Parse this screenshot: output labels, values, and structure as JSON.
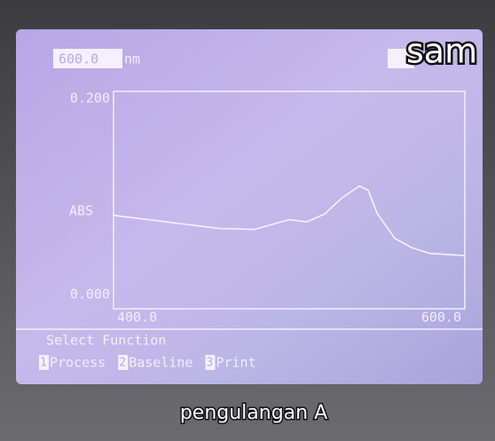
{
  "wavelength": "600.0",
  "wavelength_unit": "nm",
  "overlay_text": "sam",
  "chart_data": {
    "type": "line",
    "ylabel": "ABS",
    "x": [
      400,
      420,
      440,
      460,
      480,
      500,
      510,
      520,
      530,
      540,
      545,
      550,
      560,
      570,
      580,
      590,
      600
    ],
    "values": [
      0.086,
      0.082,
      0.078,
      0.074,
      0.073,
      0.082,
      0.08,
      0.087,
      0.102,
      0.113,
      0.109,
      0.088,
      0.065,
      0.056,
      0.051,
      0.05,
      0.049
    ],
    "color": "#f6f2ff",
    "xlim": [
      400,
      600
    ],
    "xticks": [
      {
        "value": 400,
        "label": "400.0"
      },
      {
        "value": 600,
        "label": "600.0"
      }
    ],
    "ylim": [
      0,
      0.2
    ],
    "yticks": [
      {
        "value": 0,
        "label": "0.000"
      },
      {
        "value": 0.2,
        "label": "0.200"
      }
    ],
    "grid": false
  },
  "menu": {
    "title": "Select Function",
    "options": [
      {
        "key": "1",
        "label": "Process"
      },
      {
        "key": "2",
        "label": "Baseline"
      },
      {
        "key": "3",
        "label": "Print"
      }
    ]
  },
  "caption": "pengulangan A"
}
